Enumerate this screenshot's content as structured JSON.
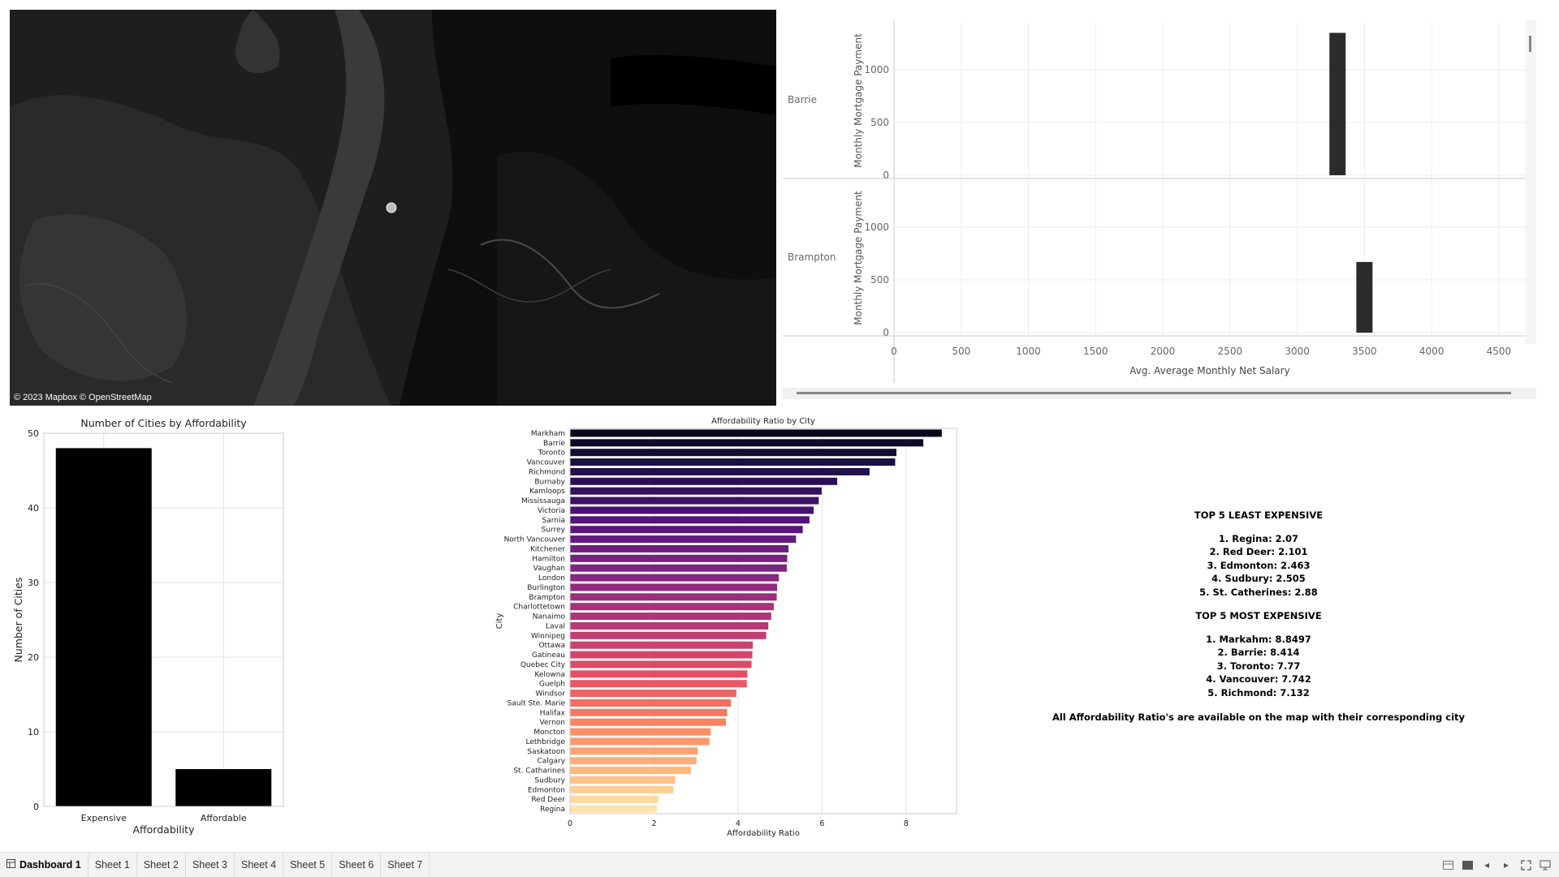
{
  "map": {
    "attribution": "© 2023 Mapbox © OpenStreetMap"
  },
  "tableau_bar": {
    "y_axis_label": "Monthly Mortgage Payment",
    "x_axis_label": "Avg. Average Monthly Net Salary",
    "x_ticks": [
      "0",
      "500",
      "1000",
      "1500",
      "2000",
      "2500",
      "3000",
      "3500",
      "4000",
      "4500"
    ],
    "y_ticks": [
      "0",
      "500",
      "1000"
    ],
    "rows": [
      {
        "city": "Barrie",
        "salary": 3300,
        "mortgage": 1350
      },
      {
        "city": "Brampton",
        "salary": 3500,
        "mortgage": 670
      }
    ]
  },
  "affordability_count": {
    "title": "Number of Cities by Affordability",
    "xlabel": "Affordability",
    "ylabel": "Number of Cities",
    "categories": [
      "Expensive",
      "Affordable"
    ],
    "values": [
      48,
      5
    ],
    "y_ticks": [
      "0",
      "10",
      "20",
      "30",
      "40",
      "50"
    ]
  },
  "ratio_chart": {
    "title": "Affordability Ratio by City",
    "xlabel": "Affordability Ratio",
    "ylabel": "City",
    "x_ticks": [
      "0",
      "2",
      "4",
      "6",
      "8"
    ]
  },
  "chart_data": [
    {
      "type": "bar",
      "title": "Number of Cities by Affordability",
      "xlabel": "Affordability",
      "ylabel": "Number of Cities",
      "categories": [
        "Expensive",
        "Affordable"
      ],
      "values": [
        48,
        5
      ],
      "ylim": [
        0,
        50
      ],
      "grid": true
    },
    {
      "type": "bar",
      "orientation": "horizontal",
      "title": "Affordability Ratio by City",
      "xlabel": "Affordability Ratio",
      "ylabel": "City",
      "xlim": [
        0,
        9.2
      ],
      "categories": [
        "Markham",
        "Barrie",
        "Toronto",
        "Vancouver",
        "Richmond",
        "Burnaby",
        "Kamloops",
        "Mississauga",
        "Victoria",
        "Sarnia",
        "Surrey",
        "North Vancouver",
        "Kitchener",
        "Hamilton",
        "Vaughan",
        "London",
        "Burlington",
        "Brampton",
        "Charlottetown",
        "Nanaimo",
        "Laval",
        "Winnipeg",
        "Ottawa",
        "Gatineau",
        "Quebec City",
        "Kelowna",
        "Guelph",
        "Windsor",
        "Sault Ste. Marie",
        "Halifax",
        "Vernon",
        "Moncton",
        "Lethbridge",
        "Saskatoon",
        "Calgary",
        "St. Catharines",
        "Sudbury",
        "Edmonton",
        "Red Deer",
        "Regina"
      ],
      "values": [
        8.85,
        8.41,
        7.77,
        7.74,
        7.13,
        6.36,
        5.99,
        5.92,
        5.8,
        5.7,
        5.54,
        5.38,
        5.2,
        5.17,
        5.16,
        4.97,
        4.93,
        4.92,
        4.85,
        4.79,
        4.72,
        4.67,
        4.35,
        4.34,
        4.32,
        4.22,
        4.21,
        3.96,
        3.83,
        3.74,
        3.71,
        3.35,
        3.32,
        3.04,
        3.01,
        2.88,
        2.505,
        2.463,
        2.101,
        2.07
      ],
      "colormap": "magma",
      "grid": true
    },
    {
      "type": "bar",
      "facets": [
        "Barrie",
        "Brampton"
      ],
      "xlabel": "Avg. Average Monthly Net Salary",
      "ylabel": "Monthly Mortgage Payment",
      "xlim": [
        0,
        4700
      ],
      "ylim": [
        0,
        1400
      ],
      "series": [
        {
          "name": "Barrie",
          "x": [
            3300
          ],
          "values": [
            1350
          ]
        },
        {
          "name": "Brampton",
          "x": [
            3500
          ],
          "values": [
            670
          ]
        }
      ]
    }
  ],
  "text_panel": {
    "least_heading": "TOP 5 LEAST EXPENSIVE",
    "least": [
      "1. Regina: 2.07",
      "2. Red Deer: 2.101",
      "3. Edmonton: 2.463",
      "4. Sudbury: 2.505",
      "5. St. Catherines: 2.88"
    ],
    "most_heading": "TOP 5 MOST EXPENSIVE",
    "most": [
      "1. Markahm: 8.8497",
      "2. Barrie: 8.414",
      "3. Toronto: 7.77",
      "4. Vancouver: 7.742",
      "5. Richmond: 7.132"
    ],
    "footer": "All Affordability Ratio's are available on the map with their corresponding city"
  },
  "tabs": [
    {
      "label": "Dashboard 1",
      "active": true
    },
    {
      "label": "Sheet 1"
    },
    {
      "label": "Sheet 2"
    },
    {
      "label": "Sheet 3"
    },
    {
      "label": "Sheet 4"
    },
    {
      "label": "Sheet 5"
    },
    {
      "label": "Sheet 6"
    },
    {
      "label": "Sheet 7"
    }
  ]
}
